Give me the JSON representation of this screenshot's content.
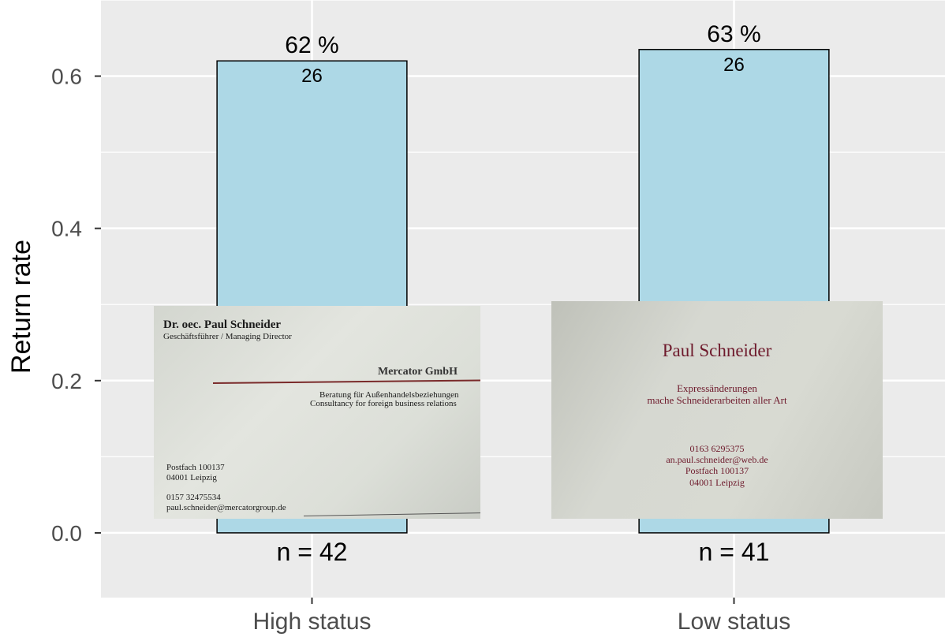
{
  "chart_data": {
    "type": "bar",
    "categories": [
      "High status",
      "Low status"
    ],
    "values": [
      0.62,
      0.635
    ],
    "percent_labels": [
      "62 %",
      "63 %"
    ],
    "count_labels": [
      "26",
      "26"
    ],
    "n_labels": [
      "n = 42",
      "n = 41"
    ],
    "ylabel": "Return rate",
    "xlabel": "",
    "ylim": [
      -0.085,
      0.7
    ],
    "yticks": [
      0.0,
      0.2,
      0.4,
      0.6
    ],
    "ytick_labels": [
      "0.0",
      "0.2",
      "0.4",
      "0.6"
    ],
    "grid": true,
    "colors": {
      "panel": "#ebebeb",
      "grid": "#ffffff",
      "bar_fill": "#add8e6",
      "bar_outline": "#000000"
    }
  },
  "cards": {
    "high": {
      "name": "Dr. oec. Paul Schneider",
      "role": "Geschäftsführer / Managing Director",
      "company": "Mercator GmbH",
      "desc_de": "Beratung für Außenhandelsbeziehungen",
      "desc_en": "Consultancy for foreign business relations",
      "address1": "Postfach 100137",
      "address2": "04001 Leipzig",
      "phone": "0157 32475534",
      "email": "paul.schneider@mercatorgroup.de"
    },
    "low": {
      "name": "Paul Schneider",
      "desc1": "Expressänderungen",
      "desc2": "mache Schneiderarbeiten aller Art",
      "phone": "0163 6295375",
      "email": "an.paul.schneider@web.de",
      "address1": "Postfach 100137",
      "address2": "04001 Leipzig"
    }
  }
}
